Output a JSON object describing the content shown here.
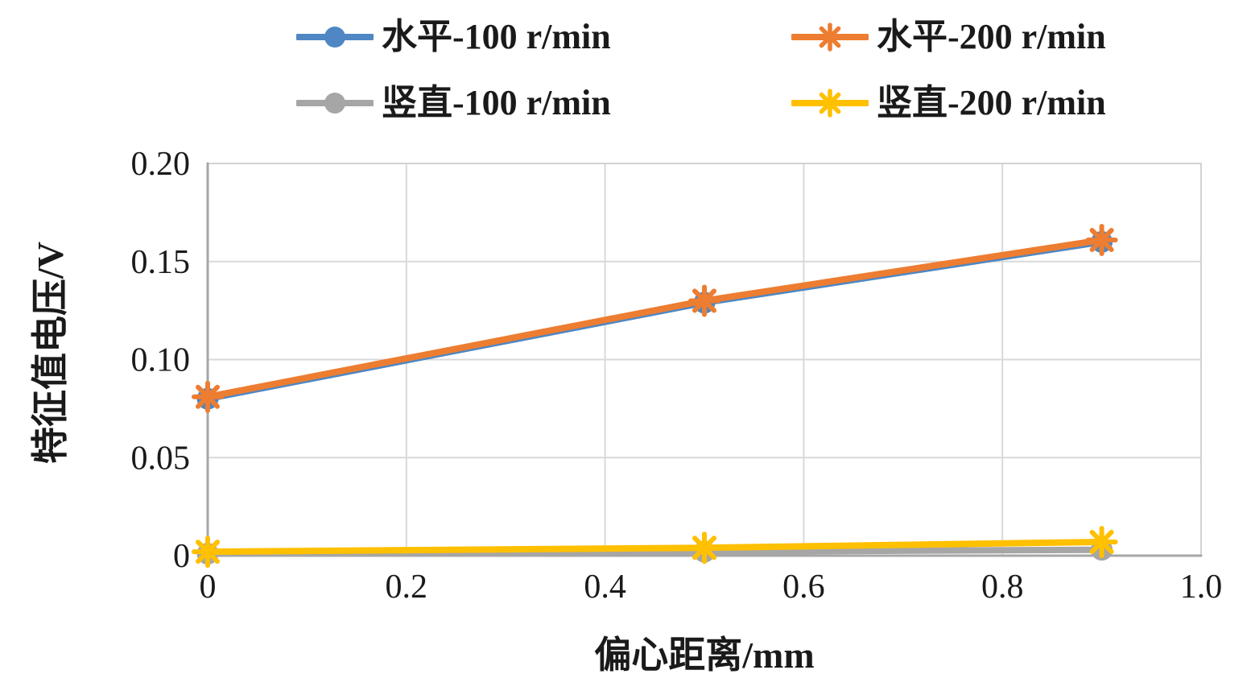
{
  "chart_data": {
    "type": "line",
    "title": "",
    "xlabel": "偏心距离/mm",
    "ylabel": "特征值电压/V",
    "x": [
      0,
      0.5,
      0.9
    ],
    "series": [
      {
        "id": "horizontal-100",
        "name": "水平-100 r/min",
        "color": "#4E87C3",
        "marker": "circle",
        "values": [
          0.08,
          0.129,
          0.16
        ]
      },
      {
        "id": "horizontal-200",
        "name": "水平-200 r/min",
        "color": "#ED7D31",
        "marker": "asterisk",
        "values": [
          0.081,
          0.13,
          0.161
        ]
      },
      {
        "id": "vertical-100",
        "name": "竖直-100 r/min",
        "color": "#A6A6A6",
        "marker": "circle",
        "values": [
          0.001,
          0.002,
          0.003
        ]
      },
      {
        "id": "vertical-200",
        "name": "竖直-200 r/min",
        "color": "#FFC000",
        "marker": "asterisk",
        "values": [
          0.002,
          0.004,
          0.007
        ]
      }
    ],
    "xlim": [
      0,
      1.0
    ],
    "ylim": [
      0,
      0.2
    ],
    "x_ticks": [
      0,
      0.2,
      0.4,
      0.6,
      0.8,
      1.0
    ],
    "x_tick_labels": [
      "0",
      "0.2",
      "0.4",
      "0.6",
      "0.8",
      "1.0"
    ],
    "y_ticks": [
      0,
      0.05,
      0.1,
      0.15,
      0.2
    ],
    "y_tick_labels": [
      "0",
      "0.05",
      "0.10",
      "0.15",
      "0.20"
    ],
    "grid": true,
    "legend_position": "top",
    "grid_color": "#D9D9D9",
    "border_color": "#D2D2D2",
    "axis_color": "#A6A6A6",
    "text_color": "#1a1a1a"
  }
}
